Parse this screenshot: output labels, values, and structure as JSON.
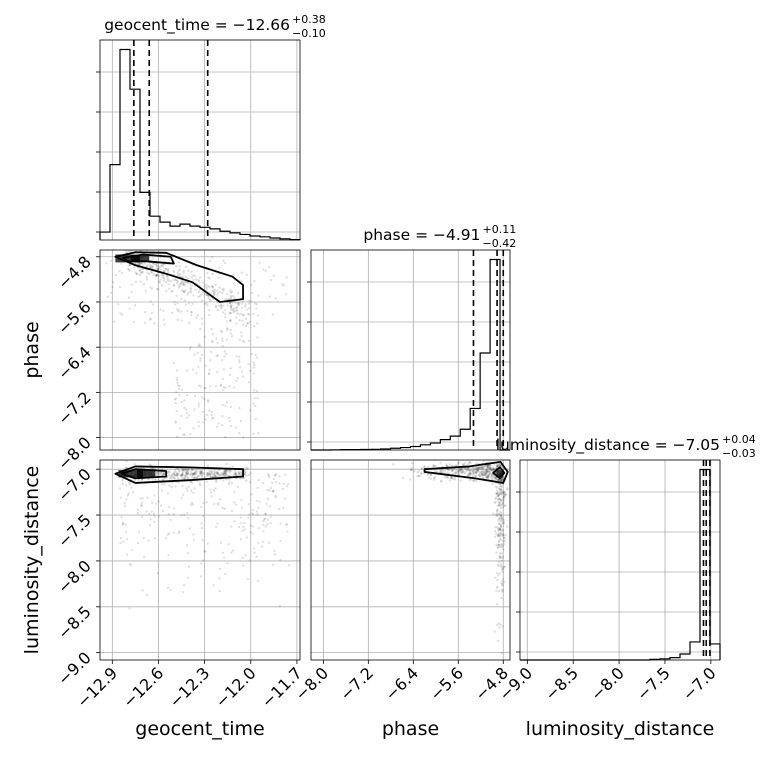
{
  "chart_data": {
    "type": "corner",
    "parameters": [
      "geocent_time",
      "phase",
      "luminosity_distance"
    ],
    "titles": [
      {
        "name": "geocent_time",
        "value": "−12.66",
        "plus": "+0.38",
        "minus": "−0.10"
      },
      {
        "name": "phase",
        "value": "−4.91",
        "plus": "+0.11",
        "minus": "−0.42"
      },
      {
        "name": "luminosity_distance",
        "value": "−7.05",
        "plus": "+0.04",
        "minus": "−0.03"
      }
    ],
    "quantiles": {
      "geocent_time": [
        -12.76,
        -12.66,
        -12.28
      ],
      "phase": [
        -5.33,
        -4.91,
        -4.8
      ],
      "luminosity_distance": [
        -7.08,
        -7.05,
        -7.01
      ]
    },
    "ranges": {
      "geocent_time": [
        -12.98,
        -11.68
      ],
      "phase": [
        -8.22,
        -4.68
      ],
      "luminosity_distance": [
        -9.08,
        -6.9
      ]
    },
    "ticks": {
      "geocent_time": [
        "−12.9",
        "−12.6",
        "−12.3",
        "−12.0",
        "−11.7"
      ],
      "phase": [
        "−8.0",
        "−7.2",
        "−6.4",
        "−5.6",
        "−4.8"
      ],
      "luminosity_distance": [
        "−9.0",
        "−8.5",
        "−8.0",
        "−7.5",
        "−7.0"
      ]
    },
    "tick_values": {
      "geocent_time": [
        -12.9,
        -12.6,
        -12.3,
        -12.0,
        -11.7
      ],
      "phase": [
        -8.0,
        -7.2,
        -6.4,
        -5.6,
        -4.8
      ],
      "luminosity_distance": [
        -9.0,
        -8.5,
        -8.0,
        -7.5,
        -7.0
      ]
    },
    "histograms": {
      "geocent_time": {
        "edges": [
          -12.98,
          -12.915,
          -12.85,
          -12.785,
          -12.72,
          -12.655,
          -12.59,
          -12.525,
          -12.46,
          -12.395,
          -12.33,
          -12.265,
          -12.2,
          -12.135,
          -12.07,
          -12.005,
          -11.94,
          -11.875,
          -11.81,
          -11.745,
          -11.68
        ],
        "counts": [
          2,
          19,
          48,
          38,
          12,
          6,
          4.5,
          3.5,
          4,
          3.5,
          3.2,
          2.8,
          2.2,
          1.8,
          1.4,
          1.0,
          0.8,
          0.5,
          0.3,
          0.1
        ]
      },
      "phase": {
        "edges": [
          -8.22,
          -8.043,
          -7.866,
          -7.689,
          -7.512,
          -7.335,
          -7.158,
          -6.981,
          -6.804,
          -6.627,
          -6.45,
          -6.273,
          -6.096,
          -5.919,
          -5.742,
          -5.565,
          -5.388,
          -5.211,
          -5.034,
          -4.857,
          -4.68
        ],
        "counts": [
          0,
          0,
          0.05,
          0.1,
          0.1,
          0.15,
          0.2,
          0.3,
          0.5,
          0.7,
          1.0,
          1.5,
          2,
          3,
          4,
          6,
          12,
          28,
          55,
          0
        ]
      },
      "luminosity_distance": {
        "edges": [
          -9.08,
          -8.971,
          -8.862,
          -8.753,
          -8.644,
          -8.535,
          -8.426,
          -8.317,
          -8.208,
          -8.099,
          -7.99,
          -7.881,
          -7.772,
          -7.663,
          -7.554,
          -7.445,
          -7.336,
          -7.227,
          -7.118,
          -7.009,
          -6.9
        ],
        "counts": [
          0,
          0,
          0,
          0,
          0,
          0,
          0,
          0,
          0,
          0,
          0,
          0,
          0,
          0.3,
          0.6,
          1.2,
          3,
          9,
          95,
          8
        ]
      }
    },
    "contour_levels": 2,
    "grid": true
  }
}
